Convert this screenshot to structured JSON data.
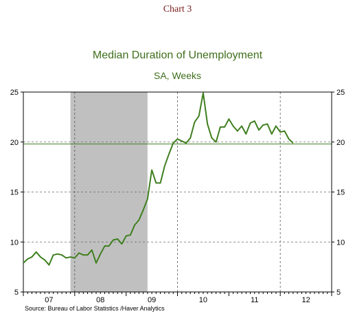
{
  "page": {
    "title": "Chart 3",
    "source": "Source:  Bureau of Labor Statistics /Haver Analytics"
  },
  "chart_data": {
    "type": "line",
    "title": "Median Duration of Unemployment",
    "subtitle": "SA, Weeks",
    "xlabel": "",
    "ylabel": "",
    "ylim": [
      5,
      25
    ],
    "yticks": [
      5,
      10,
      15,
      20,
      25
    ],
    "ytick_labels": [
      "5",
      "10",
      "15",
      "20",
      "25"
    ],
    "x_year_labels": [
      "07",
      "08",
      "09",
      "10",
      "11",
      "12"
    ],
    "x_start_month_index": 0,
    "x_end_month_index": 72,
    "reference_line": 19.8,
    "recession_shading": [
      {
        "start_month_index": 11,
        "end_month_index": 29,
        "color": "#c0c0c0"
      }
    ],
    "grid": "dashed",
    "series": [
      {
        "name": "",
        "color": "#3f7f1f",
        "start_month_index": 0,
        "values": [
          7.9,
          8.3,
          8.5,
          9.0,
          8.5,
          8.2,
          7.7,
          8.7,
          8.8,
          8.7,
          8.4,
          8.5,
          8.4,
          8.9,
          8.7,
          8.7,
          9.2,
          7.9,
          8.8,
          9.6,
          9.6,
          10.2,
          10.3,
          9.8,
          10.6,
          10.7,
          11.7,
          12.2,
          13.2,
          14.3,
          17.2,
          15.9,
          15.9,
          17.6,
          18.8,
          19.9,
          20.3,
          20.1,
          19.9,
          20.4,
          22.0,
          22.6,
          24.9,
          21.8,
          20.4,
          20.0,
          21.5,
          21.5,
          22.3,
          21.6,
          21.1,
          21.6,
          20.8,
          21.9,
          22.1,
          21.2,
          21.7,
          21.8,
          20.8,
          21.6,
          21.0,
          21.1,
          20.3,
          19.9
        ]
      }
    ]
  },
  "colors": {
    "line": "#3f7f1f",
    "title": "#3f6e1c",
    "recession": "#c0c0c0",
    "header": "#7a1a1a"
  }
}
